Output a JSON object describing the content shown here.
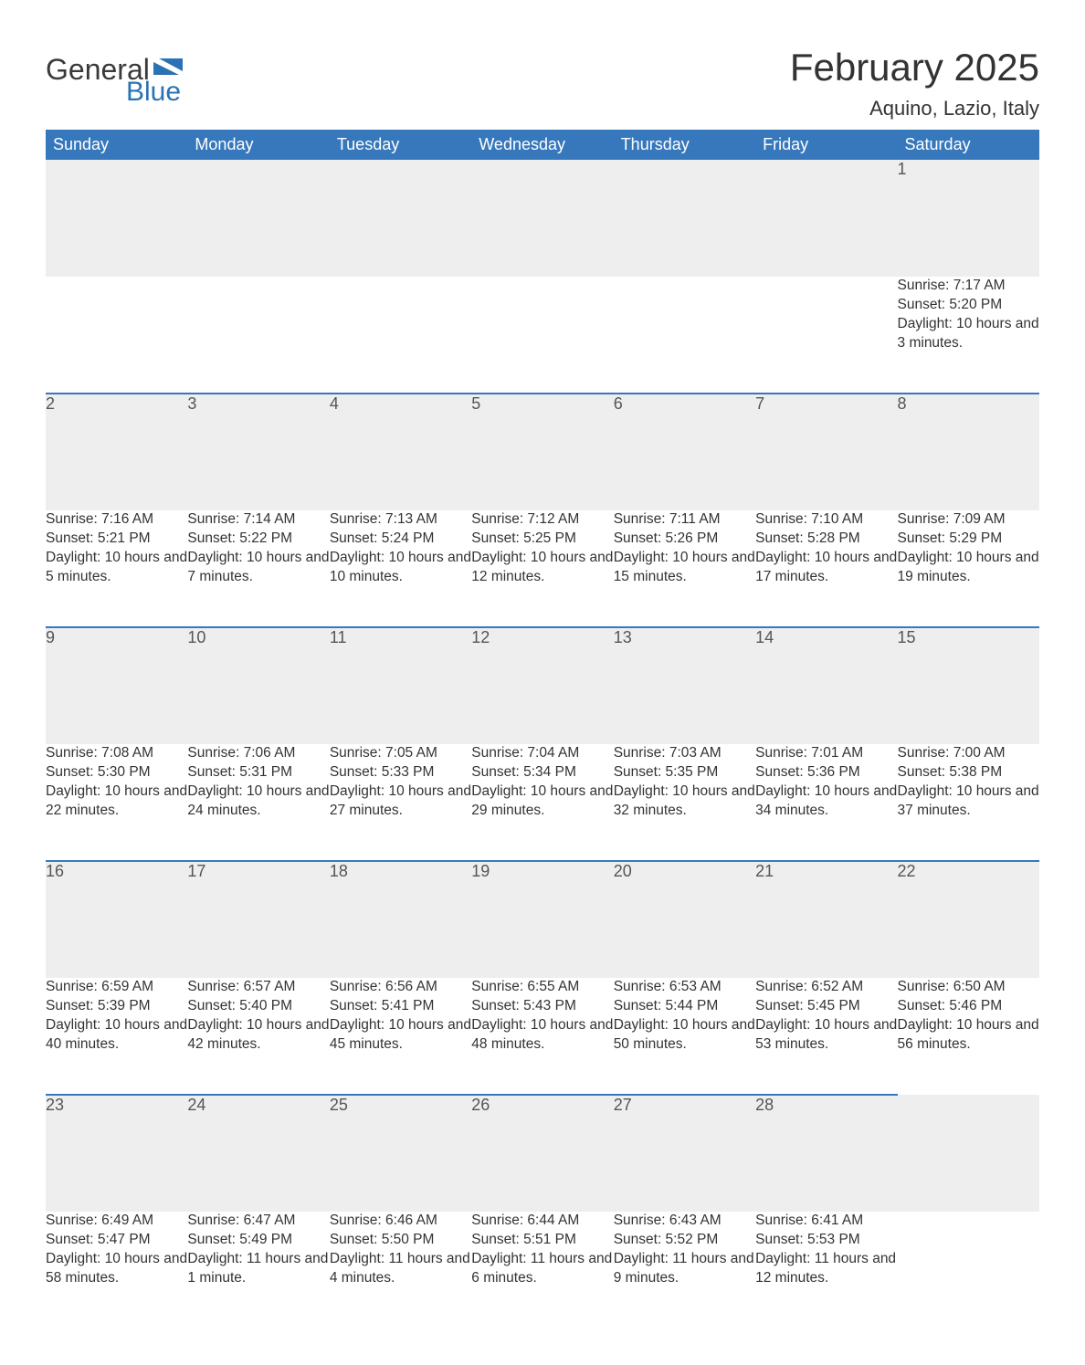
{
  "brand": {
    "general": "General",
    "blue": "Blue",
    "accent_color": "#2a72b5"
  },
  "title": "February 2025",
  "location": "Aquino, Lazio, Italy",
  "colors": {
    "header_bg": "#3778bc",
    "header_text": "#ffffff",
    "row_border": "#3778bc",
    "daynum_bg": "#eeeeee",
    "text": "#333333"
  },
  "weekdays": [
    "Sunday",
    "Monday",
    "Tuesday",
    "Wednesday",
    "Thursday",
    "Friday",
    "Saturday"
  ],
  "labels": {
    "sunrise": "Sunrise",
    "sunset": "Sunset",
    "daylight": "Daylight"
  },
  "weeks": [
    [
      null,
      null,
      null,
      null,
      null,
      null,
      {
        "d": "1",
        "sr": "7:17 AM",
        "ss": "5:20 PM",
        "dl": "10 hours and 3 minutes."
      }
    ],
    [
      {
        "d": "2",
        "sr": "7:16 AM",
        "ss": "5:21 PM",
        "dl": "10 hours and 5 minutes."
      },
      {
        "d": "3",
        "sr": "7:14 AM",
        "ss": "5:22 PM",
        "dl": "10 hours and 7 minutes."
      },
      {
        "d": "4",
        "sr": "7:13 AM",
        "ss": "5:24 PM",
        "dl": "10 hours and 10 minutes."
      },
      {
        "d": "5",
        "sr": "7:12 AM",
        "ss": "5:25 PM",
        "dl": "10 hours and 12 minutes."
      },
      {
        "d": "6",
        "sr": "7:11 AM",
        "ss": "5:26 PM",
        "dl": "10 hours and 15 minutes."
      },
      {
        "d": "7",
        "sr": "7:10 AM",
        "ss": "5:28 PM",
        "dl": "10 hours and 17 minutes."
      },
      {
        "d": "8",
        "sr": "7:09 AM",
        "ss": "5:29 PM",
        "dl": "10 hours and 19 minutes."
      }
    ],
    [
      {
        "d": "9",
        "sr": "7:08 AM",
        "ss": "5:30 PM",
        "dl": "10 hours and 22 minutes."
      },
      {
        "d": "10",
        "sr": "7:06 AM",
        "ss": "5:31 PM",
        "dl": "10 hours and 24 minutes."
      },
      {
        "d": "11",
        "sr": "7:05 AM",
        "ss": "5:33 PM",
        "dl": "10 hours and 27 minutes."
      },
      {
        "d": "12",
        "sr": "7:04 AM",
        "ss": "5:34 PM",
        "dl": "10 hours and 29 minutes."
      },
      {
        "d": "13",
        "sr": "7:03 AM",
        "ss": "5:35 PM",
        "dl": "10 hours and 32 minutes."
      },
      {
        "d": "14",
        "sr": "7:01 AM",
        "ss": "5:36 PM",
        "dl": "10 hours and 34 minutes."
      },
      {
        "d": "15",
        "sr": "7:00 AM",
        "ss": "5:38 PM",
        "dl": "10 hours and 37 minutes."
      }
    ],
    [
      {
        "d": "16",
        "sr": "6:59 AM",
        "ss": "5:39 PM",
        "dl": "10 hours and 40 minutes."
      },
      {
        "d": "17",
        "sr": "6:57 AM",
        "ss": "5:40 PM",
        "dl": "10 hours and 42 minutes."
      },
      {
        "d": "18",
        "sr": "6:56 AM",
        "ss": "5:41 PM",
        "dl": "10 hours and 45 minutes."
      },
      {
        "d": "19",
        "sr": "6:55 AM",
        "ss": "5:43 PM",
        "dl": "10 hours and 48 minutes."
      },
      {
        "d": "20",
        "sr": "6:53 AM",
        "ss": "5:44 PM",
        "dl": "10 hours and 50 minutes."
      },
      {
        "d": "21",
        "sr": "6:52 AM",
        "ss": "5:45 PM",
        "dl": "10 hours and 53 minutes."
      },
      {
        "d": "22",
        "sr": "6:50 AM",
        "ss": "5:46 PM",
        "dl": "10 hours and 56 minutes."
      }
    ],
    [
      {
        "d": "23",
        "sr": "6:49 AM",
        "ss": "5:47 PM",
        "dl": "10 hours and 58 minutes."
      },
      {
        "d": "24",
        "sr": "6:47 AM",
        "ss": "5:49 PM",
        "dl": "11 hours and 1 minute."
      },
      {
        "d": "25",
        "sr": "6:46 AM",
        "ss": "5:50 PM",
        "dl": "11 hours and 4 minutes."
      },
      {
        "d": "26",
        "sr": "6:44 AM",
        "ss": "5:51 PM",
        "dl": "11 hours and 6 minutes."
      },
      {
        "d": "27",
        "sr": "6:43 AM",
        "ss": "5:52 PM",
        "dl": "11 hours and 9 minutes."
      },
      {
        "d": "28",
        "sr": "6:41 AM",
        "ss": "5:53 PM",
        "dl": "11 hours and 12 minutes."
      },
      null
    ]
  ]
}
